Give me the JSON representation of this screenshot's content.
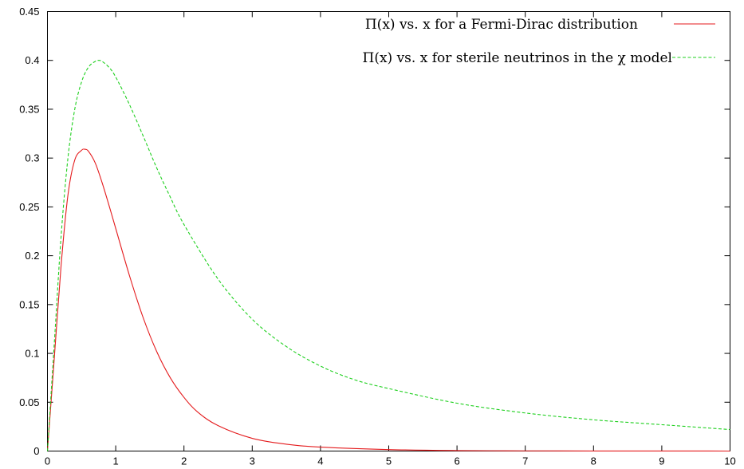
{
  "chart_data": {
    "type": "line",
    "title": "",
    "xlabel": "",
    "ylabel": "",
    "xlim": [
      0,
      10
    ],
    "ylim": [
      0,
      0.45
    ],
    "xticks": [
      "0",
      "1",
      "2",
      "3",
      "4",
      "5",
      "6",
      "7",
      "8",
      "9",
      "10"
    ],
    "yticks": [
      "0",
      "0.05",
      "0.1",
      "0.15",
      "0.2",
      "0.25",
      "0.3",
      "0.35",
      "0.4",
      "0.45"
    ],
    "grid": false,
    "legend_position": "top-right",
    "series": [
      {
        "name": "Π(x) vs. x for a Fermi-Dirac distribution",
        "color": "#e41a1c",
        "dash": "solid",
        "x": [
          0,
          0.1,
          0.2,
          0.3,
          0.4,
          0.5,
          0.55,
          0.6,
          0.7,
          0.8,
          0.9,
          1.0,
          1.2,
          1.4,
          1.6,
          1.8,
          2.0,
          2.2,
          2.5,
          3.0,
          3.5,
          4.0,
          5.0,
          6.0,
          7.0,
          8.0,
          9.0,
          10.0
        ],
        "y": [
          0,
          0.095,
          0.19,
          0.262,
          0.298,
          0.308,
          0.309,
          0.307,
          0.295,
          0.275,
          0.252,
          0.228,
          0.18,
          0.137,
          0.102,
          0.075,
          0.055,
          0.04,
          0.026,
          0.013,
          0.007,
          0.004,
          0.0015,
          0.0005,
          0.0002,
          7e-05,
          3e-05,
          1e-05
        ]
      },
      {
        "name": "Π(x) vs. x for sterile neutrinos in the χ model",
        "color": "#1fd01f",
        "dash": "dashed",
        "x": [
          0,
          0.1,
          0.2,
          0.3,
          0.4,
          0.5,
          0.6,
          0.7,
          0.75,
          0.8,
          0.9,
          1.0,
          1.2,
          1.4,
          1.6,
          1.8,
          2.0,
          2.5,
          3.0,
          3.5,
          4.0,
          4.5,
          5.0,
          6.0,
          7.0,
          8.0,
          9.0,
          10.0
        ],
        "y": [
          0,
          0.11,
          0.22,
          0.3,
          0.35,
          0.378,
          0.393,
          0.399,
          0.4,
          0.399,
          0.393,
          0.383,
          0.355,
          0.323,
          0.29,
          0.26,
          0.232,
          0.176,
          0.135,
          0.107,
          0.087,
          0.073,
          0.064,
          0.049,
          0.039,
          0.032,
          0.027,
          0.022
        ]
      }
    ]
  }
}
